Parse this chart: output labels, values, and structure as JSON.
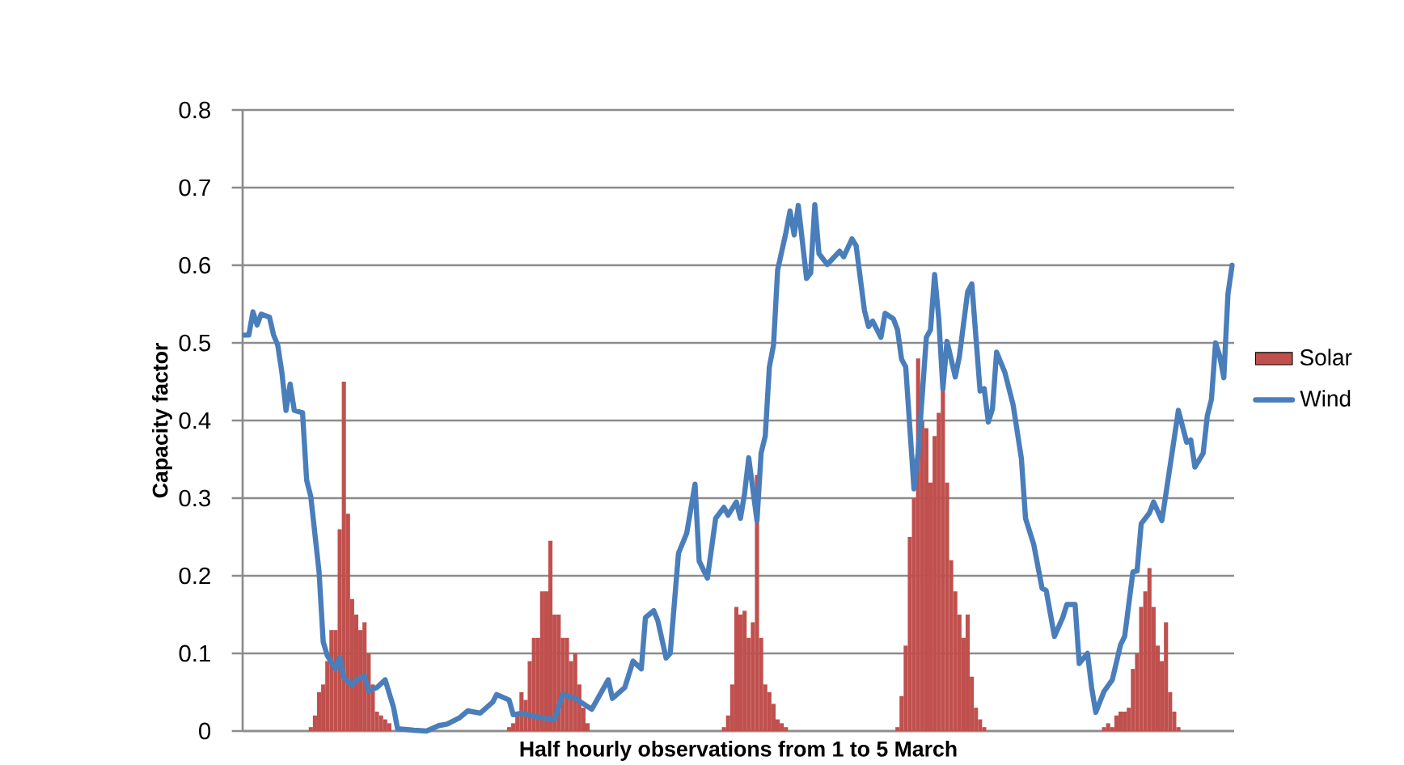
{
  "chart_data": {
    "type": "bar",
    "xlabel": "Half hourly observations from 1 to 5 March",
    "ylabel": "Capacity factor",
    "categories": [
      null,
      null,
      null,
      null,
      null,
      null,
      null,
      null,
      null,
      null,
      null,
      null,
      null,
      null,
      null,
      null,
      null,
      null,
      null,
      null,
      null,
      null,
      null,
      null,
      null,
      null,
      null,
      null,
      null,
      null,
      null,
      null,
      null,
      null,
      null,
      null,
      null,
      null,
      null,
      null,
      null,
      null,
      null,
      null,
      null,
      null,
      null,
      null,
      null,
      null,
      null,
      null,
      null,
      null,
      null,
      null,
      null,
      null,
      null,
      null,
      null,
      null,
      null,
      null,
      null,
      null,
      null,
      null,
      null,
      null,
      null,
      null,
      null,
      null,
      null,
      null,
      null,
      null,
      null,
      null,
      null,
      null,
      null,
      null,
      null,
      null,
      null,
      null,
      null,
      null,
      null,
      null,
      null,
      null,
      null,
      null,
      null,
      null,
      null,
      null,
      null,
      null,
      null,
      null,
      null,
      null,
      null,
      null,
      null,
      null,
      null,
      null,
      null,
      null,
      null,
      null,
      null,
      null,
      null,
      null,
      null,
      null,
      null,
      null,
      null,
      null,
      null,
      null,
      null,
      null,
      null,
      null,
      null,
      null,
      null,
      null,
      null,
      null,
      null,
      null,
      null,
      null,
      null,
      null,
      null,
      null,
      null,
      null,
      null,
      null,
      null,
      null,
      null,
      null,
      null,
      null,
      null,
      null,
      null,
      null,
      null,
      null,
      null,
      null,
      null,
      null,
      null,
      null,
      null,
      null,
      null,
      null,
      null,
      null,
      null,
      null,
      null,
      null,
      null,
      null,
      null,
      null,
      null,
      null,
      null,
      null,
      null,
      null,
      null,
      null,
      null,
      null,
      null,
      null,
      null,
      null,
      null,
      null,
      null,
      null,
      null,
      null,
      null,
      null,
      null,
      null,
      null,
      null,
      null,
      null,
      null,
      null,
      null,
      null,
      null,
      null,
      null,
      null,
      null,
      null,
      null,
      null,
      null,
      null,
      null,
      null,
      null,
      null,
      null,
      null,
      null,
      null,
      null,
      null,
      null,
      null,
      null,
      null,
      null,
      null
    ],
    "series": [
      {
        "name": "Solar",
        "type": "bar",
        "color": "#c0504d",
        "values": [
          0,
          0,
          0,
          0,
          0,
          0,
          0,
          0,
          0,
          0,
          0,
          0,
          0,
          0,
          0,
          0,
          0.005,
          0.02,
          0.05,
          0.06,
          0.09,
          0.13,
          0.13,
          0.26,
          0.45,
          0.28,
          0.17,
          0.15,
          0.13,
          0.14,
          0.1,
          0.06,
          0.025,
          0.02,
          0.015,
          0.01,
          0,
          0,
          0,
          0,
          0,
          0,
          0,
          0,
          0,
          0,
          0,
          0,
          0,
          0,
          0,
          0,
          0,
          0,
          0,
          0,
          0,
          0,
          0,
          0,
          0,
          0,
          0,
          0,
          0.005,
          0.01,
          0.02,
          0.05,
          0.04,
          0.09,
          0.12,
          0.12,
          0.18,
          0.18,
          0.245,
          0.15,
          0.15,
          0.12,
          0.12,
          0.09,
          0.1,
          0.06,
          0.03,
          0.01,
          0,
          0,
          0,
          0,
          0,
          0,
          0,
          0,
          0,
          0,
          0,
          0,
          0,
          0,
          0,
          0,
          0,
          0,
          0,
          0,
          0,
          0,
          0,
          0,
          0,
          0,
          0,
          0,
          0,
          0,
          0,
          0,
          0.005,
          0.02,
          0.06,
          0.16,
          0.15,
          0.155,
          0.12,
          0.14,
          0.33,
          0.12,
          0.06,
          0.05,
          0.035,
          0.015,
          0.01,
          0.005,
          0,
          0,
          0,
          0,
          0,
          0,
          0,
          0,
          0,
          0,
          0,
          0,
          0,
          0,
          0,
          0,
          0,
          0,
          0,
          0,
          0,
          0,
          0,
          0,
          0,
          0,
          0.005,
          0.045,
          0.11,
          0.25,
          0.3,
          0.48,
          0.4,
          0.39,
          0.32,
          0.38,
          0.41,
          0.44,
          0.32,
          0.22,
          0.18,
          0.15,
          0.12,
          0.15,
          0.07,
          0.03,
          0.015,
          0.005,
          0,
          0,
          0,
          0,
          0,
          0,
          0,
          0,
          0,
          0,
          0,
          0,
          0,
          0,
          0,
          0,
          0,
          0,
          0,
          0,
          0,
          0,
          0,
          0,
          0,
          0,
          0,
          0,
          0.005,
          0.01,
          0.005,
          0.02,
          0.025,
          0.025,
          0.03,
          0.08,
          0.1,
          0.16,
          0.18,
          0.21,
          0.16,
          0.11,
          0.09,
          0.14,
          0.05,
          0.025,
          0.005,
          0,
          0,
          0,
          0,
          0,
          0,
          0,
          0,
          0,
          0,
          0,
          0,
          0
        ]
      },
      {
        "name": "Wind",
        "type": "line",
        "color": "#4a7ebb",
        "values": [
          0.51,
          0.51,
          0.54,
          0.523,
          0.537,
          null,
          0.533,
          0.51,
          0.497,
          0.462,
          0.413,
          0.447,
          0.413,
          null,
          0.41,
          0.323,
          0.302,
          null,
          0.205,
          0.115,
          0.097,
          null,
          0.08,
          0.095,
          0.069,
          null,
          0.059,
          0.066,
          null,
          0.071,
          0.052,
          null,
          0.056,
          null,
          0.066,
          null,
          0.031,
          0.003,
          null,
          null,
          null,
          0.001,
          null,
          null,
          0.0,
          null,
          null,
          0.007,
          null,
          0.009,
          null,
          null,
          0.017,
          null,
          0.026,
          null,
          null,
          0.023,
          null,
          null,
          0.037,
          0.047,
          null,
          null,
          0.04,
          0.021,
          null,
          0.023,
          null,
          null,
          0.019,
          null,
          null,
          0.016,
          null,
          0.015,
          null,
          0.047,
          null,
          null,
          0.042,
          null,
          null,
          null,
          0.028,
          null,
          null,
          null,
          0.066,
          0.042,
          null,
          null,
          0.056,
          null,
          0.09,
          null,
          0.08,
          0.146,
          null,
          0.155,
          0.142,
          null,
          0.094,
          0.1,
          null,
          0.229,
          null,
          0.255,
          null,
          0.318,
          0.219,
          null,
          0.197,
          null,
          0.274,
          null,
          0.288,
          0.278,
          null,
          0.295,
          0.274,
          0.306,
          0.352,
          null,
          0.271,
          0.358,
          0.38,
          0.469,
          0.497,
          0.594,
          null,
          0.642,
          0.67,
          0.639,
          0.677,
          null,
          0.583,
          0.59,
          0.678,
          0.615,
          null,
          0.601,
          null,
          null,
          0.618,
          0.611,
          null,
          0.634,
          0.625,
          null,
          0.542,
          0.521,
          0.528,
          null,
          0.507,
          0.538,
          null,
          0.531,
          0.517,
          0.479,
          0.469,
          null,
          0.312,
          0.358,
          null,
          0.507,
          0.517,
          0.588,
          0.531,
          0.441,
          0.502,
          null,
          0.456,
          0.483,
          null,
          0.566,
          0.576,
          null,
          0.438,
          0.441,
          0.398,
          0.415,
          0.488,
          null,
          0.462,
          null,
          0.42,
          null,
          0.351,
          0.274,
          null,
          0.24,
          null,
          0.184,
          0.181,
          null,
          0.122,
          null,
          0.146,
          0.163,
          null,
          0.163,
          0.087,
          null,
          0.1,
          0.056,
          0.024,
          null,
          0.051,
          null,
          0.066,
          null,
          0.111,
          0.122,
          null,
          0.205,
          0.206,
          0.267,
          null,
          0.281,
          0.295,
          null,
          0.271,
          0.306,
          null,
          null,
          0.413,
          null,
          0.372,
          0.375,
          0.34,
          null,
          0.358,
          0.406,
          0.427,
          0.5,
          0.483,
          0.455,
          0.563,
          0.6
        ]
      }
    ],
    "ylim": [
      0,
      0.8
    ],
    "yticks": [
      0,
      0.1,
      0.2,
      0.3,
      0.4,
      0.5,
      0.6,
      0.7,
      0.8
    ],
    "grid": "y",
    "legend": "right",
    "tick_labels": "y"
  }
}
